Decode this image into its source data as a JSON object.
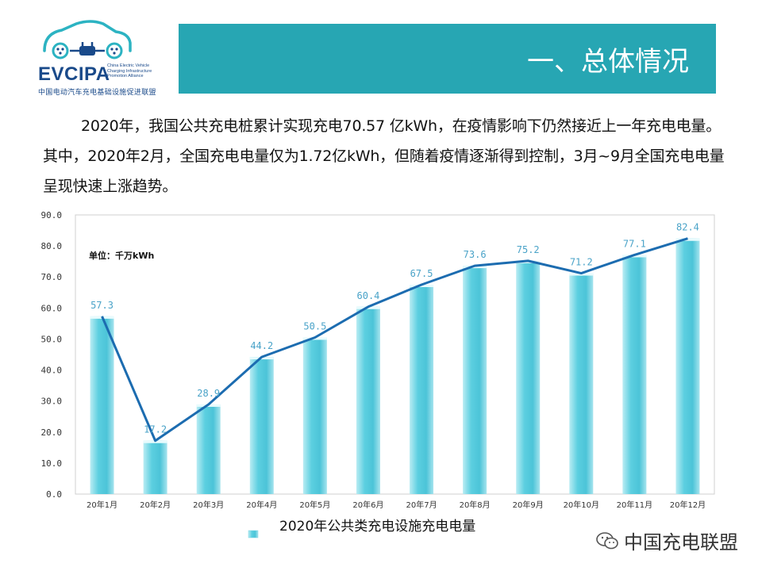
{
  "logo": {
    "brand": "EVCIPA",
    "english_lines": [
      "China Electric Vehicle",
      "Charging Infrastructure",
      "Promotion Alliance"
    ],
    "chinese": "中国电动汽车充电基础设施促进联盟"
  },
  "header": {
    "title": "一、总体情况"
  },
  "intro": {
    "text": "2020年，我国公共充电桩累计实现充电70.57 亿kWh，在疫情影响下仍然接近上一年充电电量。其中，2020年2月，全国充电电量仅为1.72亿kWh，但随着疫情逐渐得到控制，3月~9月全国充电电量呈现快速上涨趋势。"
  },
  "chart_data": {
    "type": "bar",
    "title": "",
    "unit_label": "单位：千万kWh",
    "categories": [
      "20年1月",
      "20年2月",
      "20年3月",
      "20年4月",
      "20年5月",
      "20年6月",
      "20年7月",
      "20年8月",
      "20年9月",
      "20年10月",
      "20年11月",
      "20年12月"
    ],
    "values": [
      57.3,
      17.2,
      28.9,
      44.2,
      50.5,
      60.4,
      67.5,
      73.6,
      75.2,
      71.2,
      77.1,
      82.4
    ],
    "value_labels": [
      "57.3",
      "17.2",
      "28.9",
      "44.2",
      "50.5",
      "60.4",
      "67.5",
      "73.6",
      "75.2",
      "71.2",
      "77.1",
      "82.4"
    ],
    "overlay_line": true,
    "ylim": [
      0,
      90
    ],
    "yticks": [
      "0.0",
      "10.0",
      "20.0",
      "30.0",
      "40.0",
      "50.0",
      "60.0",
      "70.0",
      "80.0",
      "90.0"
    ],
    "legend": {
      "label": "2020年公共类充电设施充电电量",
      "position": "bottom"
    },
    "colors": {
      "bar": "#5ccfe0",
      "bar_light": "#b9ecf3",
      "line": "#1c6cb0",
      "label": "#4aa3c8",
      "axis": "#c8c8c8"
    }
  },
  "watermark": {
    "text": "中国充电联盟"
  }
}
